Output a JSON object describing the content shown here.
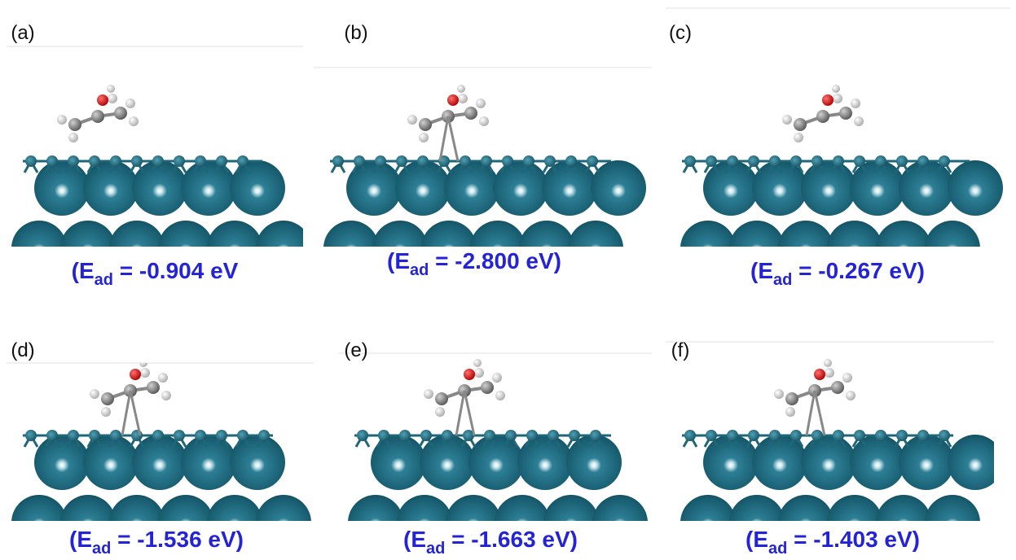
{
  "panels": [
    {
      "label": "(a)",
      "caption": {
        "prefix": "(E",
        "sub": "ad",
        "rest": " = -0.904 eV"
      }
    },
    {
      "label": "(b)",
      "caption": {
        "prefix": "(E",
        "sub": "ad",
        "rest": " = -2.800 eV)"
      }
    },
    {
      "label": "(c)",
      "caption": {
        "prefix": "(E",
        "sub": "ad",
        "rest": " = -0.267 eV)"
      }
    },
    {
      "label": "(d)",
      "caption": {
        "prefix": "(E",
        "sub": "ad",
        "rest": " = -1.536 eV)"
      }
    },
    {
      "label": "(e)",
      "caption": {
        "prefix": "(E",
        "sub": "ad",
        "rest": " = -1.663 eV)"
      }
    },
    {
      "label": "(f)",
      "caption": {
        "prefix": "(E",
        "sub": "ad",
        "rest": " = -1.403 eV)"
      }
    }
  ]
}
